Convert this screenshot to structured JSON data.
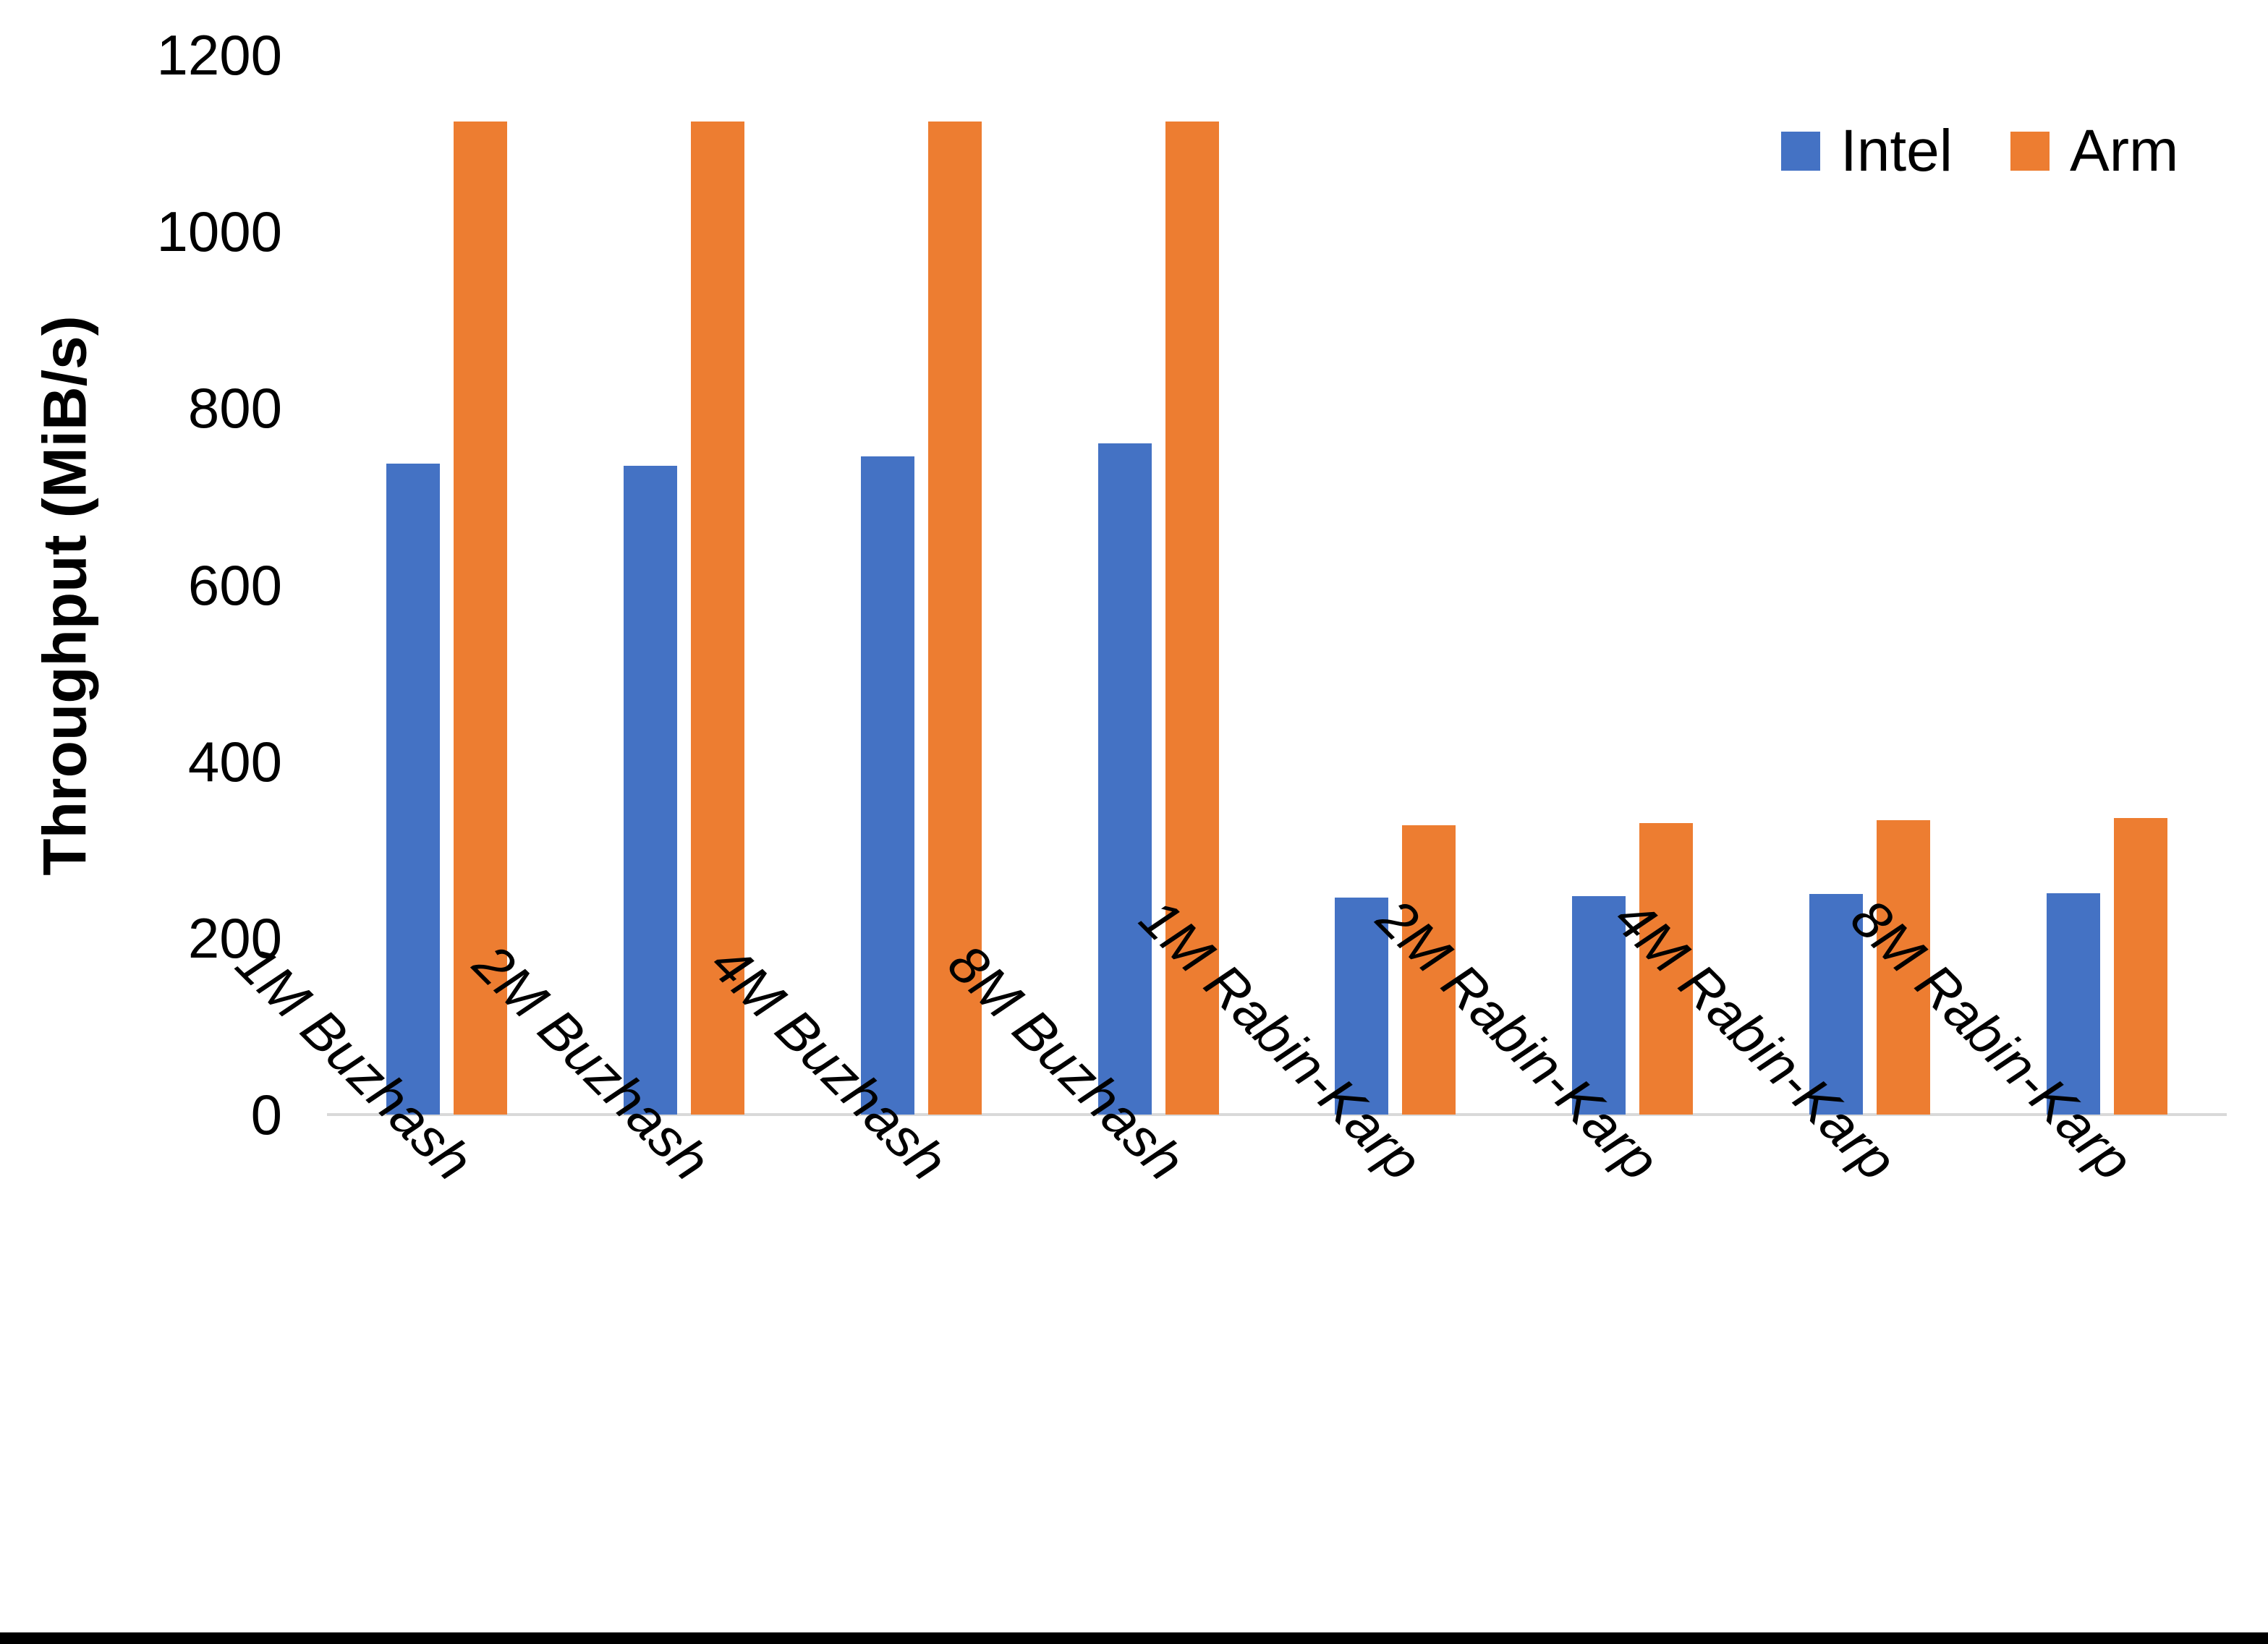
{
  "chart_data": {
    "type": "bar",
    "title": "",
    "xlabel": "",
    "ylabel": "Throughput (MiB/s)",
    "ylim": [
      0,
      1200
    ],
    "yticks": [
      0,
      200,
      400,
      600,
      800,
      1000,
      1200
    ],
    "grid": false,
    "legend_position": "top-right",
    "categories": [
      "1M Buzhash",
      "2M Buzhash",
      "4M Buzhash",
      "8M Buzhash",
      "1M Rabin-Karp",
      "2M Rabin-Karp",
      "4M Rabin-Karp",
      "8M Rabin-Karp"
    ],
    "series": [
      {
        "name": "Intel",
        "color": "#4472C4",
        "values": [
          737,
          735,
          745,
          760,
          246,
          247,
          250,
          251
        ]
      },
      {
        "name": "Arm",
        "color": "#ED7D31",
        "values": [
          1125,
          1125,
          1125,
          1125,
          328,
          330,
          333,
          336
        ]
      }
    ]
  },
  "colors": {
    "axis_line": "#d9d9d9",
    "text": "#000000",
    "background": "#ffffff",
    "bottom_strip": "#000000"
  }
}
